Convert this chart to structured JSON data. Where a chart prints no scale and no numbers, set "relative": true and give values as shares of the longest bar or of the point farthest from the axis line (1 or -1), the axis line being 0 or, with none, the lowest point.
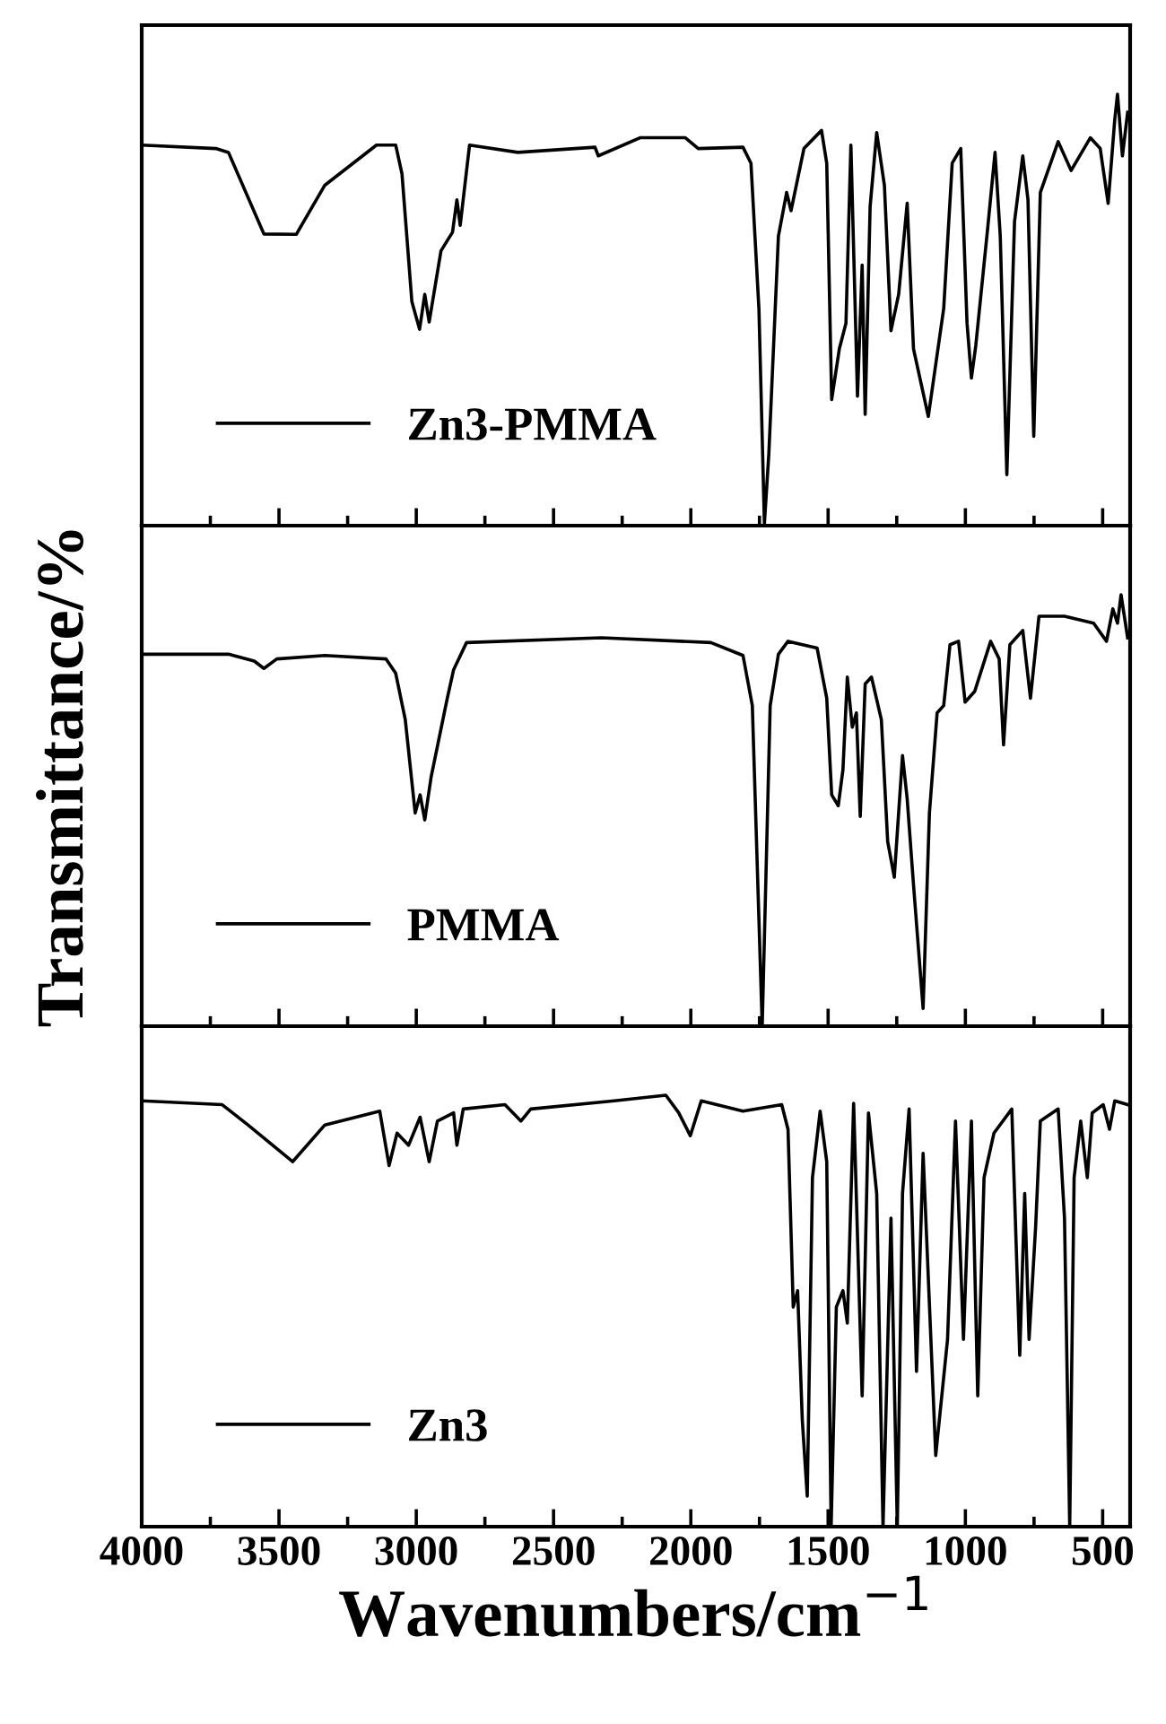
{
  "chart_data": [
    {
      "type": "line",
      "relative": true,
      "xlim": [
        4000,
        400
      ],
      "xticks": [
        4000,
        {
          "value": 3750,
          "label": null
        },
        3500,
        {
          "value": 3250,
          "label": null
        },
        3000,
        {
          "value": 2750,
          "label": null
        },
        2500,
        {
          "value": 2250,
          "label": null
        },
        2000,
        {
          "value": 1750,
          "label": null
        },
        1500,
        {
          "value": 1250,
          "label": null
        },
        1000,
        {
          "value": 750,
          "label": null
        },
        500
      ],
      "tick_labels": false,
      "legend": "bottom left",
      "x": [
        4000,
        3730,
        3684,
        3555,
        3437,
        3333,
        3145,
        3075,
        3052,
        3016,
        2988,
        2969,
        2953,
        2910,
        2868,
        2852,
        2840,
        2806,
        2630,
        2349,
        2337,
        2185,
        2020,
        1973,
        1810,
        1781,
        1752,
        1732,
        1716,
        1681,
        1651,
        1635,
        1588,
        1524,
        1505,
        1487,
        1459,
        1435,
        1417,
        1393,
        1376,
        1365,
        1347,
        1323,
        1295,
        1271,
        1243,
        1212,
        1189,
        1135,
        1079,
        1048,
        1017,
        994,
        978,
        962,
        919,
        892,
        873,
        849,
        821,
        791,
        772,
        751,
        727,
        662,
        615,
        545,
        509,
        480,
        456,
        446,
        428,
        409
      ],
      "series": [
        {
          "name": "Zn3-PMMA",
          "color": "#000000",
          "values": [
            0.882,
            0.874,
            0.865,
            0.676,
            0.675,
            0.789,
            0.882,
            0.882,
            0.815,
            0.519,
            0.455,
            0.536,
            0.472,
            0.637,
            0.68,
            0.755,
            0.696,
            0.882,
            0.865,
            0.877,
            0.857,
            0.899,
            0.899,
            0.874,
            0.877,
            0.84,
            0.503,
            0.005,
            0.165,
            0.671,
            0.772,
            0.73,
            0.874,
            0.916,
            0.84,
            0.292,
            0.41,
            0.469,
            0.882,
            0.3,
            0.604,
            0.258,
            0.739,
            0.911,
            0.789,
            0.452,
            0.536,
            0.747,
            0.41,
            0.253,
            0.503,
            0.84,
            0.874,
            0.469,
            0.342,
            0.418,
            0.688,
            0.865,
            0.671,
            0.118,
            0.705,
            0.857,
            0.755,
            0.207,
            0.772,
            0.89,
            0.823,
            0.899,
            0.874,
            0.747,
            0.941,
            1.0,
            0.857,
            0.958
          ]
        }
      ]
    },
    {
      "type": "line",
      "relative": true,
      "xlim": [
        4000,
        400
      ],
      "xticks": [
        4000,
        {
          "value": 3750,
          "label": null
        },
        3500,
        {
          "value": 3250,
          "label": null
        },
        3000,
        {
          "value": 2750,
          "label": null
        },
        2500,
        {
          "value": 2250,
          "label": null
        },
        2000,
        {
          "value": 1750,
          "label": null
        },
        1500,
        {
          "value": 1250,
          "label": null
        },
        1000,
        {
          "value": 750,
          "label": null
        },
        500
      ],
      "tick_labels": false,
      "legend": "bottom left",
      "ylabel": "Transmittance/%",
      "x": [
        4000,
        3684,
        3590,
        3555,
        3508,
        3333,
        3110,
        3075,
        3040,
        3004,
        2986,
        2969,
        2946,
        2887,
        2864,
        2817,
        2326,
        1927,
        1810,
        1776,
        1740,
        1711,
        1681,
        1646,
        1540,
        1505,
        1487,
        1463,
        1446,
        1430,
        1412,
        1397,
        1383,
        1365,
        1342,
        1306,
        1283,
        1259,
        1229,
        1212,
        1189,
        1154,
        1131,
        1103,
        1079,
        1056,
        1025,
        1001,
        966,
        908,
        877,
        861,
        838,
        791,
        763,
        732,
        639,
        533,
        486,
        463,
        446,
        433,
        409
      ],
      "series": [
        {
          "name": "PMMA",
          "color": "#000000",
          "values": [
            0.862,
            0.862,
            0.846,
            0.829,
            0.851,
            0.859,
            0.851,
            0.818,
            0.71,
            0.494,
            0.536,
            0.478,
            0.577,
            0.76,
            0.826,
            0.889,
            0.9,
            0.889,
            0.859,
            0.743,
            0.0,
            0.743,
            0.862,
            0.892,
            0.876,
            0.76,
            0.536,
            0.511,
            0.594,
            0.809,
            0.693,
            0.726,
            0.486,
            0.793,
            0.809,
            0.71,
            0.428,
            0.345,
            0.627,
            0.527,
            0.328,
            0.041,
            0.494,
            0.726,
            0.743,
            0.884,
            0.892,
            0.751,
            0.776,
            0.892,
            0.851,
            0.652,
            0.884,
            0.917,
            0.76,
            0.95,
            0.95,
            0.934,
            0.892,
            0.967,
            0.934,
            1.0,
            0.9
          ]
        }
      ]
    },
    {
      "type": "line",
      "relative": true,
      "xlim": [
        4000,
        400
      ],
      "xticks": [
        4000,
        {
          "value": 3750,
          "label": null
        },
        3500,
        {
          "value": 3250,
          "label": null
        },
        3000,
        {
          "value": 2750,
          "label": null
        },
        2500,
        {
          "value": 2250,
          "label": null
        },
        2000,
        {
          "value": 1750,
          "label": null
        },
        1500,
        {
          "value": 1250,
          "label": null
        },
        1000,
        {
          "value": 750,
          "label": null
        },
        500
      ],
      "tick_labels": "x",
      "legend": "bottom left",
      "xlabel": "Wavenumbers/cm$^{−1}$",
      "x": [
        4000,
        3707,
        3613,
        3450,
        3333,
        3133,
        3099,
        3070,
        3028,
        2986,
        2953,
        2923,
        2864,
        2852,
        2829,
        2677,
        2619,
        2583,
        2279,
        2091,
        2044,
        2002,
        1962,
        1810,
        1669,
        1646,
        1627,
        1611,
        1594,
        1576,
        1557,
        1529,
        1505,
        1489,
        1470,
        1446,
        1430,
        1407,
        1376,
        1353,
        1323,
        1300,
        1271,
        1248,
        1229,
        1205,
        1178,
        1154,
        1108,
        1065,
        1036,
        1007,
        978,
        955,
        932,
        896,
        831,
        802,
        784,
        768,
        744,
        727,
        662,
        639,
        620,
        604,
        580,
        556,
        538,
        498,
        475,
        456,
        409
      ],
      "series": [
        {
          "name": "Zn3",
          "color": "#000000",
          "values": [
            0.987,
            0.978,
            0.931,
            0.846,
            0.931,
            0.963,
            0.837,
            0.912,
            0.884,
            0.949,
            0.846,
            0.94,
            0.959,
            0.884,
            0.968,
            0.978,
            0.94,
            0.968,
            0.987,
            1.0,
            0.959,
            0.906,
            0.987,
            0.963,
            0.978,
            0.921,
            0.509,
            0.547,
            0.247,
            0.071,
            0.809,
            0.963,
            0.846,
            0.0,
            0.509,
            0.547,
            0.472,
            0.981,
            0.303,
            0.959,
            0.772,
            0.0,
            0.715,
            0.0,
            0.772,
            0.968,
            0.36,
            0.865,
            0.165,
            0.434,
            0.94,
            0.434,
            0.94,
            0.303,
            0.809,
            0.912,
            0.968,
            0.397,
            0.772,
            0.434,
            0.697,
            0.94,
            0.968,
            0.715,
            0.0,
            0.809,
            0.94,
            0.809,
            0.959,
            0.978,
            0.921,
            0.987,
            0.978
          ]
        }
      ]
    }
  ]
}
